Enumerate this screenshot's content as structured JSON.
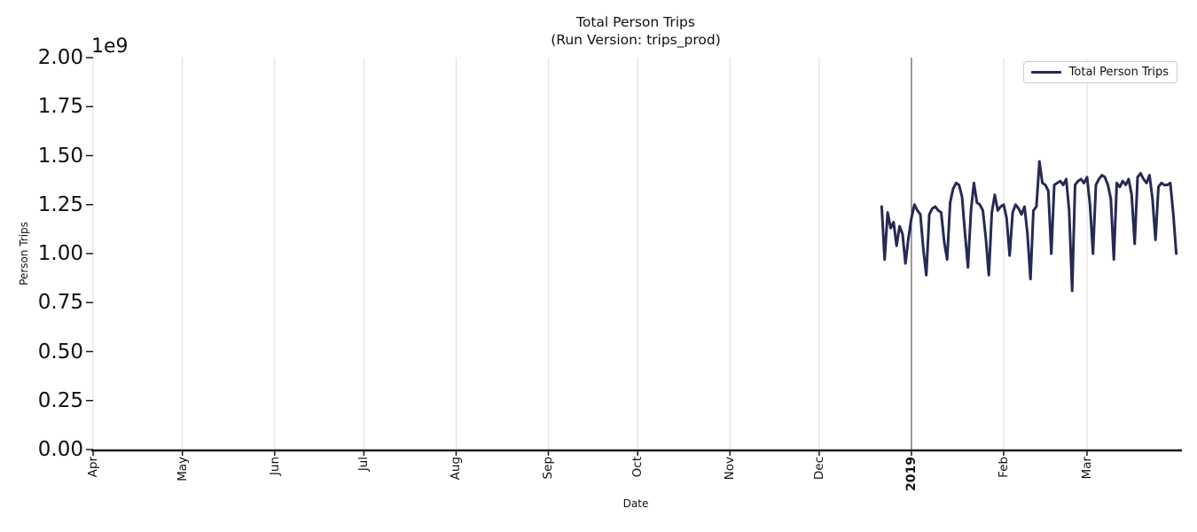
{
  "chart_data": {
    "type": "line",
    "title": "Total Person Trips",
    "subtitle": "(Run Version: trips_prod)",
    "xlabel": "Date",
    "ylabel": "Person Trips",
    "y_scale_label": "1e9",
    "x_range": [
      "2018-04-01",
      "2019-04-01"
    ],
    "ylim_1e9": [
      0,
      2.0
    ],
    "grid": "vertical month gridlines only, light gray, horizontal off",
    "colors": {
      "line": "#262a55",
      "gridline": "#e2e2e2",
      "axis": "#1a1a1a",
      "year_divider": "#3c3c3c",
      "legend_border": "#cccccc"
    },
    "legend": {
      "position": "upper right",
      "label": "Total Person Trips"
    },
    "year_line": {
      "date": "2019-01-01"
    },
    "yticks": [
      {
        "label": "0.00",
        "value": 0
      },
      {
        "label": "0.25",
        "value": 0.25
      },
      {
        "label": "0.50",
        "value": 0.5
      },
      {
        "label": "0.75",
        "value": 0.75
      },
      {
        "label": "1.00",
        "value": 1.0
      },
      {
        "label": "1.25",
        "value": 1.25
      },
      {
        "label": "1.50",
        "value": 1.5
      },
      {
        "label": "1.75",
        "value": 1.75
      },
      {
        "label": "2.00",
        "value": 2.0
      }
    ],
    "xticks": [
      {
        "label": "Apr",
        "date": "2018-04-01",
        "bold": false
      },
      {
        "label": "May",
        "date": "2018-05-01",
        "bold": false
      },
      {
        "label": "Jun",
        "date": "2018-06-01",
        "bold": false
      },
      {
        "label": "Jul",
        "date": "2018-07-01",
        "bold": false
      },
      {
        "label": "Aug",
        "date": "2018-08-01",
        "bold": false
      },
      {
        "label": "Sep",
        "date": "2018-09-01",
        "bold": false
      },
      {
        "label": "Oct",
        "date": "2018-10-01",
        "bold": false
      },
      {
        "label": "Nov",
        "date": "2018-11-01",
        "bold": false
      },
      {
        "label": "Dec",
        "date": "2018-12-01",
        "bold": false
      },
      {
        "label": "2019",
        "date": "2019-01-01",
        "bold": true
      },
      {
        "label": "Feb",
        "date": "2019-02-01",
        "bold": false
      },
      {
        "label": "Mar",
        "date": "2019-03-01",
        "bold": false
      }
    ],
    "series": [
      {
        "name": "Total Person Trips",
        "start_date": "2018-12-22",
        "frequency": "daily",
        "unit": "person trips (values in units of 1e9)",
        "values_1e9": [
          1.24,
          0.97,
          1.21,
          1.13,
          1.16,
          1.04,
          1.14,
          1.1,
          0.95,
          1.08,
          1.18,
          1.25,
          1.22,
          1.2,
          1.02,
          0.89,
          1.2,
          1.23,
          1.24,
          1.22,
          1.21,
          1.06,
          0.97,
          1.26,
          1.33,
          1.36,
          1.35,
          1.29,
          1.1,
          0.93,
          1.22,
          1.36,
          1.26,
          1.25,
          1.22,
          1.08,
          0.89,
          1.21,
          1.3,
          1.22,
          1.24,
          1.25,
          1.18,
          0.99,
          1.21,
          1.25,
          1.23,
          1.2,
          1.24,
          1.1,
          0.87,
          1.22,
          1.24,
          1.47,
          1.36,
          1.35,
          1.32,
          1.0,
          1.35,
          1.36,
          1.37,
          1.35,
          1.38,
          1.22,
          0.81,
          1.35,
          1.37,
          1.38,
          1.36,
          1.39,
          1.25,
          1.0,
          1.35,
          1.38,
          1.4,
          1.39,
          1.35,
          1.28,
          0.97,
          1.36,
          1.34,
          1.37,
          1.35,
          1.38,
          1.3,
          1.05,
          1.39,
          1.41,
          1.38,
          1.36,
          1.4,
          1.28,
          1.07,
          1.34,
          1.36,
          1.35,
          1.35,
          1.36,
          1.2,
          1.0
        ]
      }
    ]
  }
}
